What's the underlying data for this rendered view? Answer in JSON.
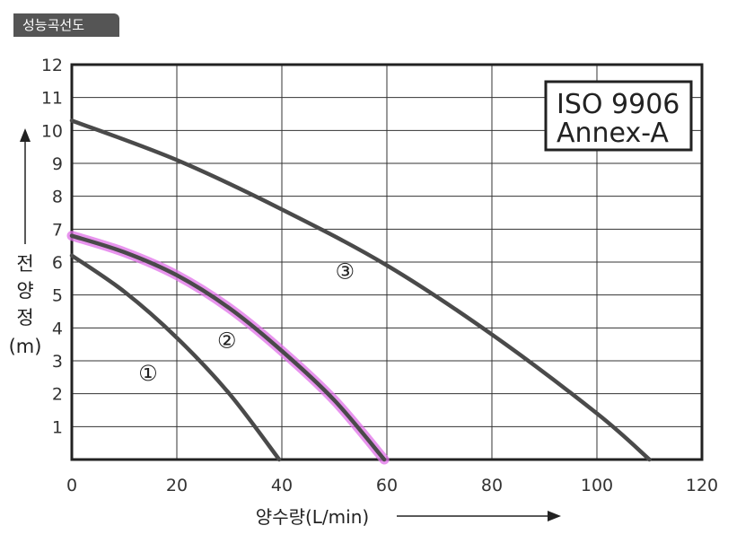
{
  "header": {
    "badge": "성능곡선도"
  },
  "chart_data": {
    "type": "line",
    "title": "",
    "xlabel": "양수량(L/min)",
    "ylabel": [
      "전",
      "양",
      "정",
      "(m)"
    ],
    "xlim": [
      0,
      120
    ],
    "ylim": [
      0,
      12
    ],
    "x_ticks": [
      "0",
      "20",
      "40",
      "60",
      "80",
      "100",
      "120"
    ],
    "y_ticks": [
      "1",
      "2",
      "3",
      "4",
      "5",
      "6",
      "7",
      "8",
      "9",
      "10",
      "11",
      "12"
    ],
    "grid": true,
    "legend_box": [
      "ISO 9906",
      "Annex-A"
    ],
    "series": [
      {
        "name": "①",
        "x": [
          0,
          10,
          20,
          30,
          39.5
        ],
        "y": [
          6.2,
          5.1,
          3.7,
          2.0,
          0
        ],
        "color": "#4a4a4a",
        "highlight": false
      },
      {
        "name": "②",
        "x": [
          0,
          10,
          20,
          30,
          40,
          50,
          59.5
        ],
        "y": [
          6.8,
          6.3,
          5.6,
          4.6,
          3.3,
          1.8,
          0
        ],
        "color": "#4a4a4a",
        "highlight": true,
        "highlight_color": "#e070e8"
      },
      {
        "name": "③",
        "x": [
          0,
          20,
          40,
          60,
          80,
          100,
          110
        ],
        "y": [
          10.3,
          9.1,
          7.6,
          5.9,
          3.8,
          1.4,
          0
        ],
        "color": "#4a4a4a",
        "highlight": false
      }
    ],
    "series_label_positions": [
      {
        "label": "①",
        "x": 14.5,
        "y": 2.4
      },
      {
        "label": "②",
        "x": 29.5,
        "y": 3.4
      },
      {
        "label": "③",
        "x": 52,
        "y": 5.5
      }
    ]
  }
}
